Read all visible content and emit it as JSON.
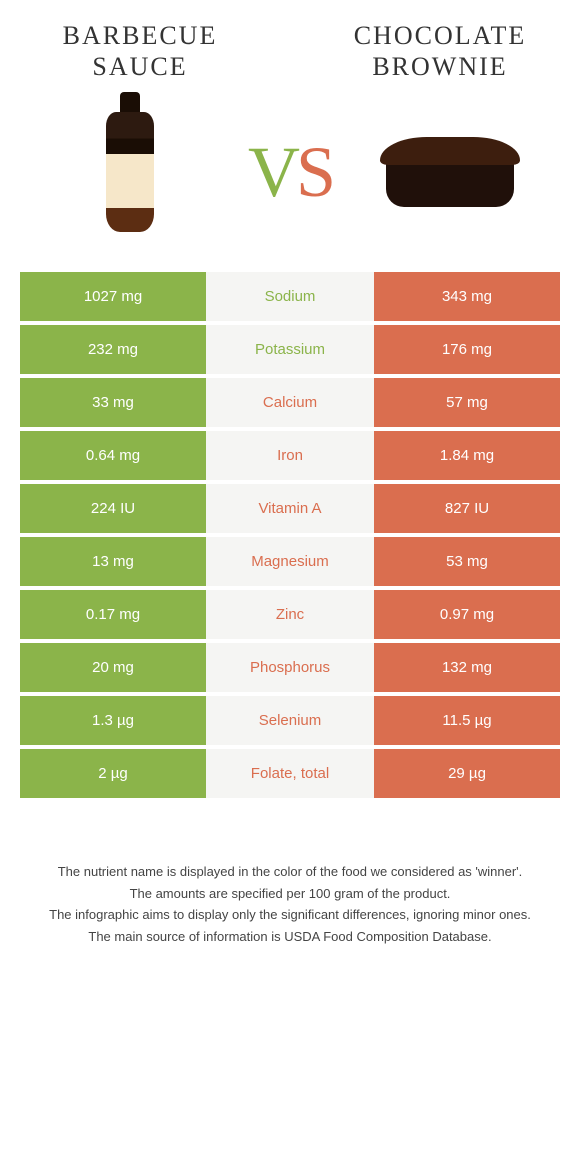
{
  "header": {
    "left_title": "Barbecue sauce",
    "right_title": "Chocolate brownie",
    "vs_v": "V",
    "vs_s": "S"
  },
  "colors": {
    "left": "#8bb44a",
    "right": "#da6e4f",
    "mid_bg": "#f5f5f3",
    "text_dark": "#333333"
  },
  "rows": [
    {
      "nutrient": "Sodium",
      "left": "1027 mg",
      "right": "343 mg",
      "winner": "left"
    },
    {
      "nutrient": "Potassium",
      "left": "232 mg",
      "right": "176 mg",
      "winner": "left"
    },
    {
      "nutrient": "Calcium",
      "left": "33 mg",
      "right": "57 mg",
      "winner": "right"
    },
    {
      "nutrient": "Iron",
      "left": "0.64 mg",
      "right": "1.84 mg",
      "winner": "right"
    },
    {
      "nutrient": "Vitamin A",
      "left": "224 IU",
      "right": "827 IU",
      "winner": "right"
    },
    {
      "nutrient": "Magnesium",
      "left": "13 mg",
      "right": "53 mg",
      "winner": "right"
    },
    {
      "nutrient": "Zinc",
      "left": "0.17 mg",
      "right": "0.97 mg",
      "winner": "right"
    },
    {
      "nutrient": "Phosphorus",
      "left": "20 mg",
      "right": "132 mg",
      "winner": "right"
    },
    {
      "nutrient": "Selenium",
      "left": "1.3 µg",
      "right": "11.5 µg",
      "winner": "right"
    },
    {
      "nutrient": "Folate, total",
      "left": "2 µg",
      "right": "29 µg",
      "winner": "right"
    }
  ],
  "footnote": {
    "l1": "The nutrient name is displayed in the color of the food we considered as 'winner'.",
    "l2": "The amounts are specified per 100 gram of the product.",
    "l3": "The infographic aims to display only the significant differences, ignoring minor ones.",
    "l4": "The main source of information is USDA Food Composition Database."
  }
}
